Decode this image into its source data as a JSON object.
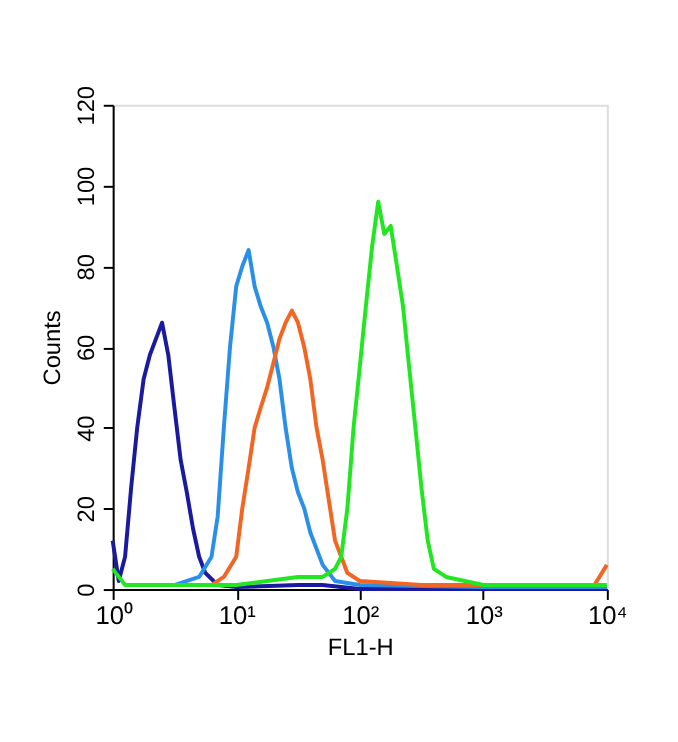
{
  "chart_data": {
    "type": "line",
    "xlabel": "FL1-H",
    "ylabel": "Counts",
    "log": "x",
    "grid": false,
    "legend": false,
    "marker": "none",
    "line_style": "solid",
    "xlim": [
      1,
      10000
    ],
    "xticks": [
      {
        "value": 1,
        "label": "10⁰"
      },
      {
        "value": 10,
        "label": "10¹"
      },
      {
        "value": 100,
        "label": "10²"
      },
      {
        "value": 1000,
        "label": "10³"
      },
      {
        "value": 10000,
        "label": "10⁴"
      }
    ],
    "ylim": [
      0,
      120
    ],
    "yticks": [
      0,
      20,
      40,
      60,
      80,
      100,
      120
    ],
    "series": [
      {
        "color": "#1a1aa0",
        "x": [
          1,
          1.12,
          1.26,
          1.41,
          1.58,
          1.78,
          2.0,
          2.24,
          2.51,
          2.82,
          3.16,
          3.55,
          3.98,
          4.47,
          5.01,
          5.62,
          7.08,
          10,
          31.6,
          50,
          100,
          10000
        ],
        "values": [
          12,
          2,
          8,
          25,
          40,
          52,
          58,
          62,
          66,
          58,
          45,
          32,
          24,
          15,
          8,
          4,
          1,
          0.5,
          1,
          1,
          0,
          0
        ]
      },
      {
        "color": "#2a8fe8",
        "x": [
          3.16,
          5.01,
          6.31,
          7.08,
          7.94,
          8.91,
          10,
          11.2,
          12.6,
          14.1,
          15.8,
          17.8,
          20,
          22.4,
          25.1,
          28.2,
          31.6,
          35.5,
          39.8,
          50.1,
          63.1,
          100,
          1000,
          10000
        ],
        "values": [
          1,
          3,
          8,
          18,
          40,
          60,
          75,
          80,
          84,
          75,
          70,
          66,
          60,
          52,
          40,
          30,
          24,
          20,
          14,
          6,
          2,
          1,
          0.5,
          0.5
        ]
      },
      {
        "color": "#f26522",
        "x": [
          6.31,
          7.94,
          10,
          11.2,
          12.6,
          14.1,
          15.8,
          17.8,
          20,
          22.4,
          25.1,
          28.2,
          31.6,
          35.5,
          39.8,
          44.7,
          50.1,
          56.2,
          63.1,
          70.8,
          79.4,
          100,
          316,
          1000,
          7940,
          10000
        ],
        "values": [
          1,
          3,
          8,
          20,
          30,
          40,
          45,
          50,
          56,
          62,
          66,
          69,
          66,
          60,
          52,
          40,
          32,
          22,
          12,
          8,
          4,
          2,
          1,
          1,
          1,
          6
        ]
      },
      {
        "color": "#22e622",
        "x": [
          1,
          1.26,
          3.16,
          10,
          31.6,
          50.1,
          63.1,
          70.8,
          79.4,
          89.1,
          100,
          112,
          126,
          141,
          158,
          178,
          200,
          224,
          251,
          282,
          316,
          355,
          398,
          501,
          1000,
          10000
        ],
        "values": [
          5,
          1,
          1,
          1,
          3,
          3,
          5,
          8,
          20,
          40,
          55,
          70,
          85,
          96,
          88,
          90,
          80,
          70,
          55,
          40,
          25,
          12,
          5,
          3,
          1,
          1
        ]
      }
    ]
  }
}
